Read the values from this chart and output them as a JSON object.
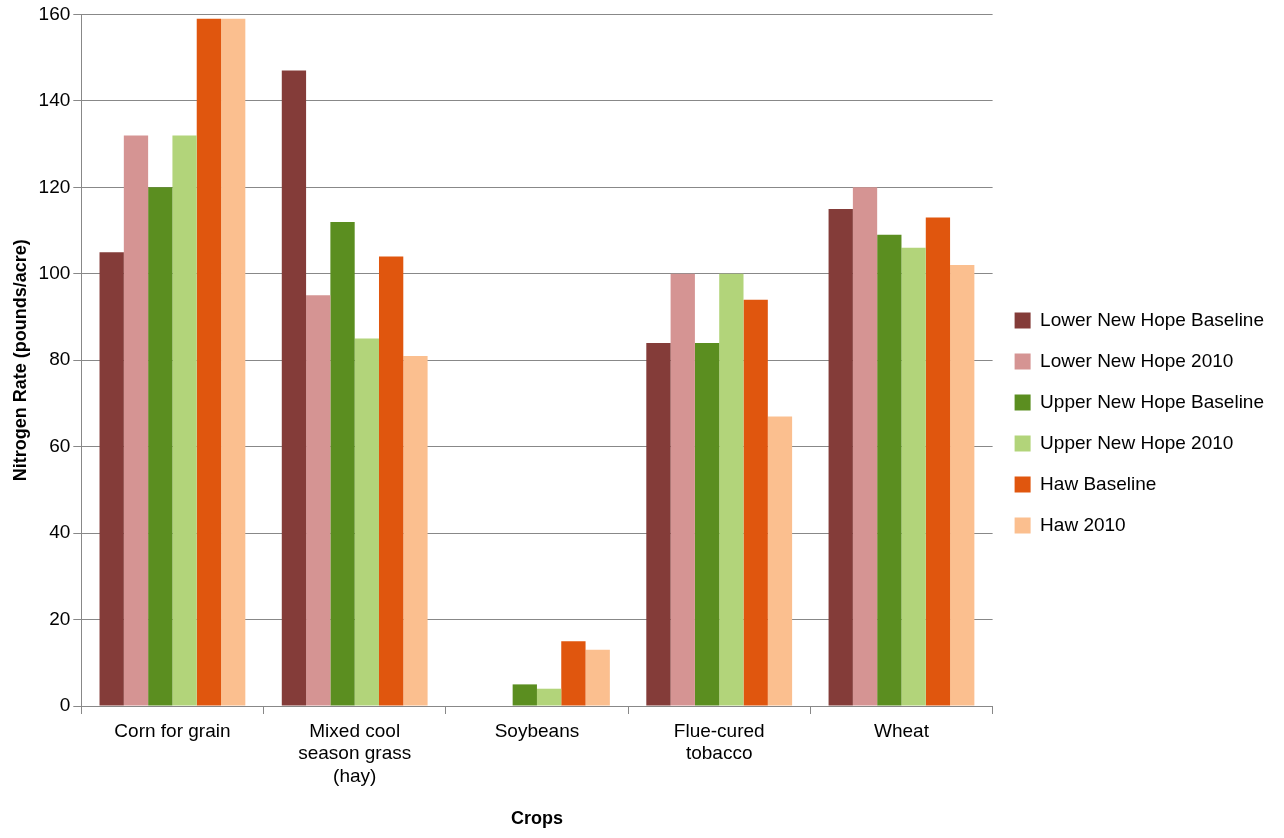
{
  "chart_data": {
    "type": "bar",
    "xlabel": "Crops",
    "ylabel": "Nitrogen Rate (pounds/acre)",
    "categories": [
      "Corn for grain",
      "Mixed cool season grass (hay)",
      "Soybeans",
      "Flue-cured tobacco",
      "Wheat"
    ],
    "series": [
      {
        "name": "Lower New Hope Baseline",
        "color": "#843c39",
        "values": [
          105,
          147,
          null,
          84,
          115
        ]
      },
      {
        "name": "Lower New Hope 2010",
        "color": "#d59493",
        "values": [
          132,
          95,
          null,
          100,
          120
        ]
      },
      {
        "name": "Upper New Hope Baseline",
        "color": "#5b8e20",
        "values": [
          120,
          112,
          5,
          84,
          109
        ]
      },
      {
        "name": "Upper New Hope 2010",
        "color": "#b2d47a",
        "values": [
          132,
          85,
          4,
          100,
          106
        ]
      },
      {
        "name": "Haw Baseline",
        "color": "#e0560e",
        "values": [
          159,
          104,
          15,
          94,
          113
        ]
      },
      {
        "name": "Haw 2010",
        "color": "#fbbf8f",
        "values": [
          159,
          81,
          13,
          67,
          102
        ]
      }
    ],
    "ylim": [
      0,
      160
    ],
    "yticks": [
      0,
      20,
      40,
      60,
      80,
      100,
      120,
      140,
      160
    ],
    "grid": "y",
    "legend": "right"
  }
}
